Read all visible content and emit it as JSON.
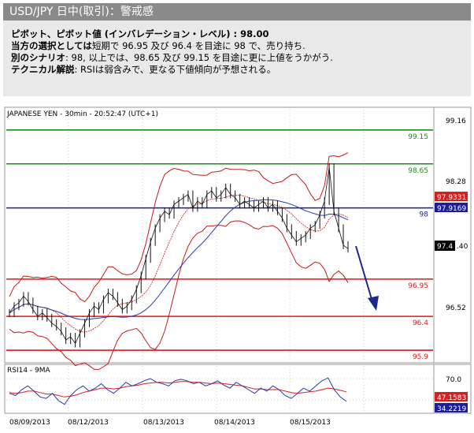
{
  "header": {
    "title": "USD/JPY 日中(取引)：警戒感",
    "line1_label": "ピボット、ピボット値 (インバレデーション・レベル) : 98.00",
    "line2_label": "当方の選択としては",
    "line2_text": "短期で 96.95 及び 96.4 を目途に 98 で、売り持ち.",
    "line3_label": "別のシナリオ",
    "line3_text": ": 98, 以上では、98.65 及び 99.15 を目途に更に上値をうかがう.",
    "line4_label": "テクニカル解説",
    "line4_text": ": RSIは弱含みで、更なる下値傾向が予想される。"
  },
  "main_panel": {
    "caption": "JAPANESE YEN - 30min - 20:52:47 (UTC+1)",
    "axis_ticks": [
      "99.16",
      "98.28",
      "96.52",
      ".40"
    ],
    "right_tags": [
      {
        "text": "97.9331",
        "bg": "#d42020",
        "fg": "#ffffff"
      },
      {
        "text": "97.9169",
        "bg": "#1c1c9c",
        "fg": "#ffffff"
      },
      {
        "text": "97.4",
        "bg": "#000000",
        "fg": "#ffffff"
      }
    ]
  },
  "rsi_panel": {
    "caption": "RSI14 - 9MA",
    "axis_ticks": [
      "70.0"
    ],
    "right_tags": [
      {
        "text": "47.1583",
        "bg": "#d42020",
        "fg": "#ffffff"
      },
      {
        "text": "34.2219",
        "bg": "#1c1c9c",
        "fg": "#ffffff"
      }
    ]
  },
  "x_labels": [
    "08/09/2013",
    "08/12/2013",
    "08/13/2013",
    "08/14/2013",
    "08/15/2013"
  ],
  "colors": {
    "resistance": "#1a8a1a",
    "support": "#e01818",
    "pivot": "#1a1a9c",
    "arrow": "#1a2a8a"
  },
  "chart_data": {
    "type": "line",
    "title": "JAPANESE YEN - 30min - 20:52:47 (UTC+1)",
    "x_labels": [
      "08/09/2013",
      "08/12/2013",
      "08/13/2013",
      "08/14/2013",
      "08/15/2013"
    ],
    "ylim": [
      95.75,
      99.45
    ],
    "levels": [
      {
        "label": "99.15",
        "value": 99.15,
        "kind": "resistance"
      },
      {
        "label": "98.65",
        "value": 98.65,
        "kind": "resistance"
      },
      {
        "label": "98",
        "value": 98.0,
        "kind": "pivot"
      },
      {
        "label": "96.95",
        "value": 96.95,
        "kind": "support"
      },
      {
        "label": "96.4",
        "value": 96.4,
        "kind": "support"
      },
      {
        "label": "95.9",
        "value": 95.9,
        "kind": "support"
      }
    ],
    "close": [
      96.45,
      96.55,
      96.6,
      96.7,
      96.62,
      96.5,
      96.4,
      96.45,
      96.38,
      96.3,
      96.25,
      96.18,
      96.05,
      96.1,
      96.0,
      96.15,
      96.3,
      96.45,
      96.55,
      96.5,
      96.65,
      96.75,
      96.7,
      96.6,
      96.5,
      96.55,
      96.65,
      96.8,
      97.0,
      97.25,
      97.5,
      97.7,
      97.85,
      97.95,
      97.9,
      98.05,
      98.1,
      98.15,
      98.2,
      98.0,
      98.1,
      98.05,
      98.2,
      98.25,
      98.15,
      98.2,
      98.3,
      98.2,
      98.15,
      98.05,
      98.1,
      98.05,
      98.0,
      98.05,
      98.1,
      98.0,
      98.05,
      97.95,
      97.85,
      97.7,
      97.6,
      97.5,
      97.55,
      97.6,
      97.7,
      97.75,
      97.9,
      98.1,
      98.6,
      97.95,
      97.7,
      97.45,
      97.4
    ],
    "rsi": [
      45,
      42,
      50,
      55,
      48,
      40,
      38,
      45,
      35,
      30,
      42,
      50,
      55,
      48,
      52,
      58,
      50,
      45,
      52,
      60,
      55,
      58,
      62,
      65,
      60,
      58,
      55,
      62,
      64,
      62,
      58,
      60,
      55,
      58,
      62,
      56,
      52,
      60,
      55,
      50,
      45,
      52,
      48,
      55,
      50,
      42,
      38,
      45,
      52,
      48,
      55,
      62,
      66,
      50,
      40,
      34
    ],
    "rsi_ma": [
      46,
      45,
      46,
      48,
      48,
      46,
      44,
      44,
      42,
      40,
      41,
      43,
      46,
      48,
      50,
      52,
      52,
      51,
      52,
      54,
      55,
      56,
      58,
      59,
      60,
      60,
      59,
      60,
      61,
      61,
      60,
      60,
      59,
      58,
      59,
      58,
      57,
      56,
      55,
      53,
      51,
      51,
      50,
      50,
      50,
      48,
      46,
      45,
      46,
      47,
      48,
      50,
      52,
      51,
      49,
      47
    ]
  }
}
